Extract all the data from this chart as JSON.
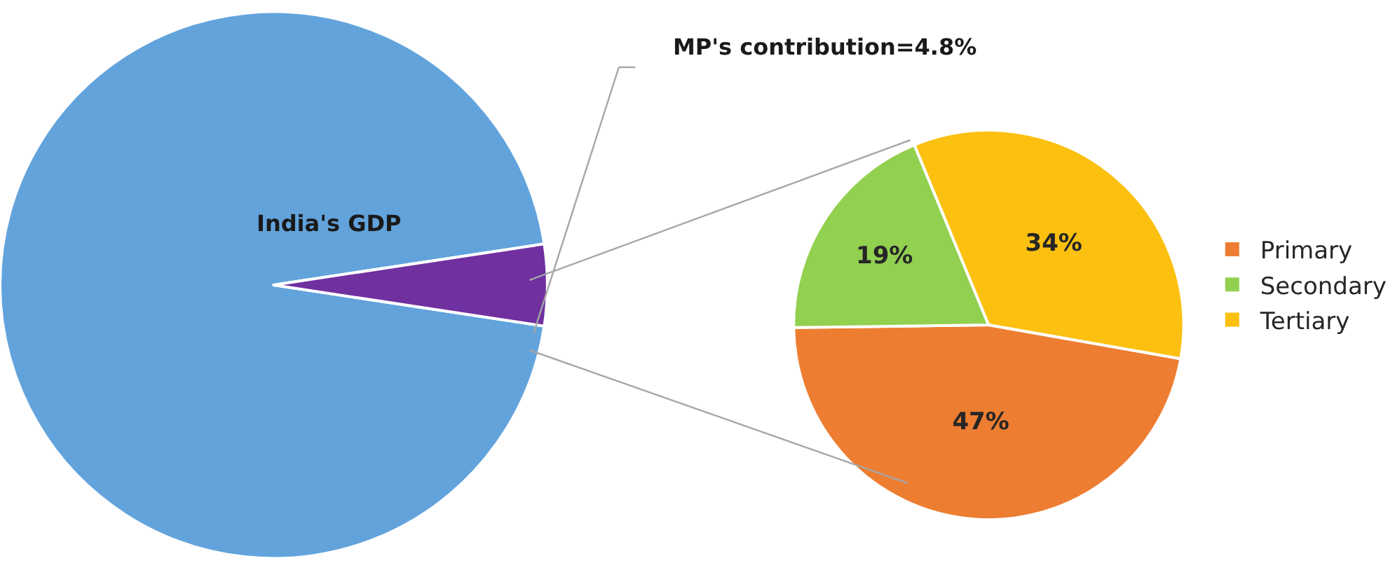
{
  "chart_data": [
    {
      "type": "pie",
      "categories": [
        "India's GDP",
        null
      ],
      "values": [
        95.2,
        4.8
      ],
      "colors": [
        "#62a3dc",
        "#7030a0"
      ],
      "legend": false,
      "annotations": [
        "MP's contribution=4.8%"
      ]
    },
    {
      "type": "pie",
      "categories": [
        "Primary",
        "Secondary",
        "Tertiary"
      ],
      "values": [
        47,
        19,
        34
      ],
      "colors": [
        "#ed7d31",
        "#92d050",
        "#fcc010"
      ],
      "value_labels": [
        "47%",
        "19%",
        "34%"
      ],
      "legend": "right"
    }
  ]
}
